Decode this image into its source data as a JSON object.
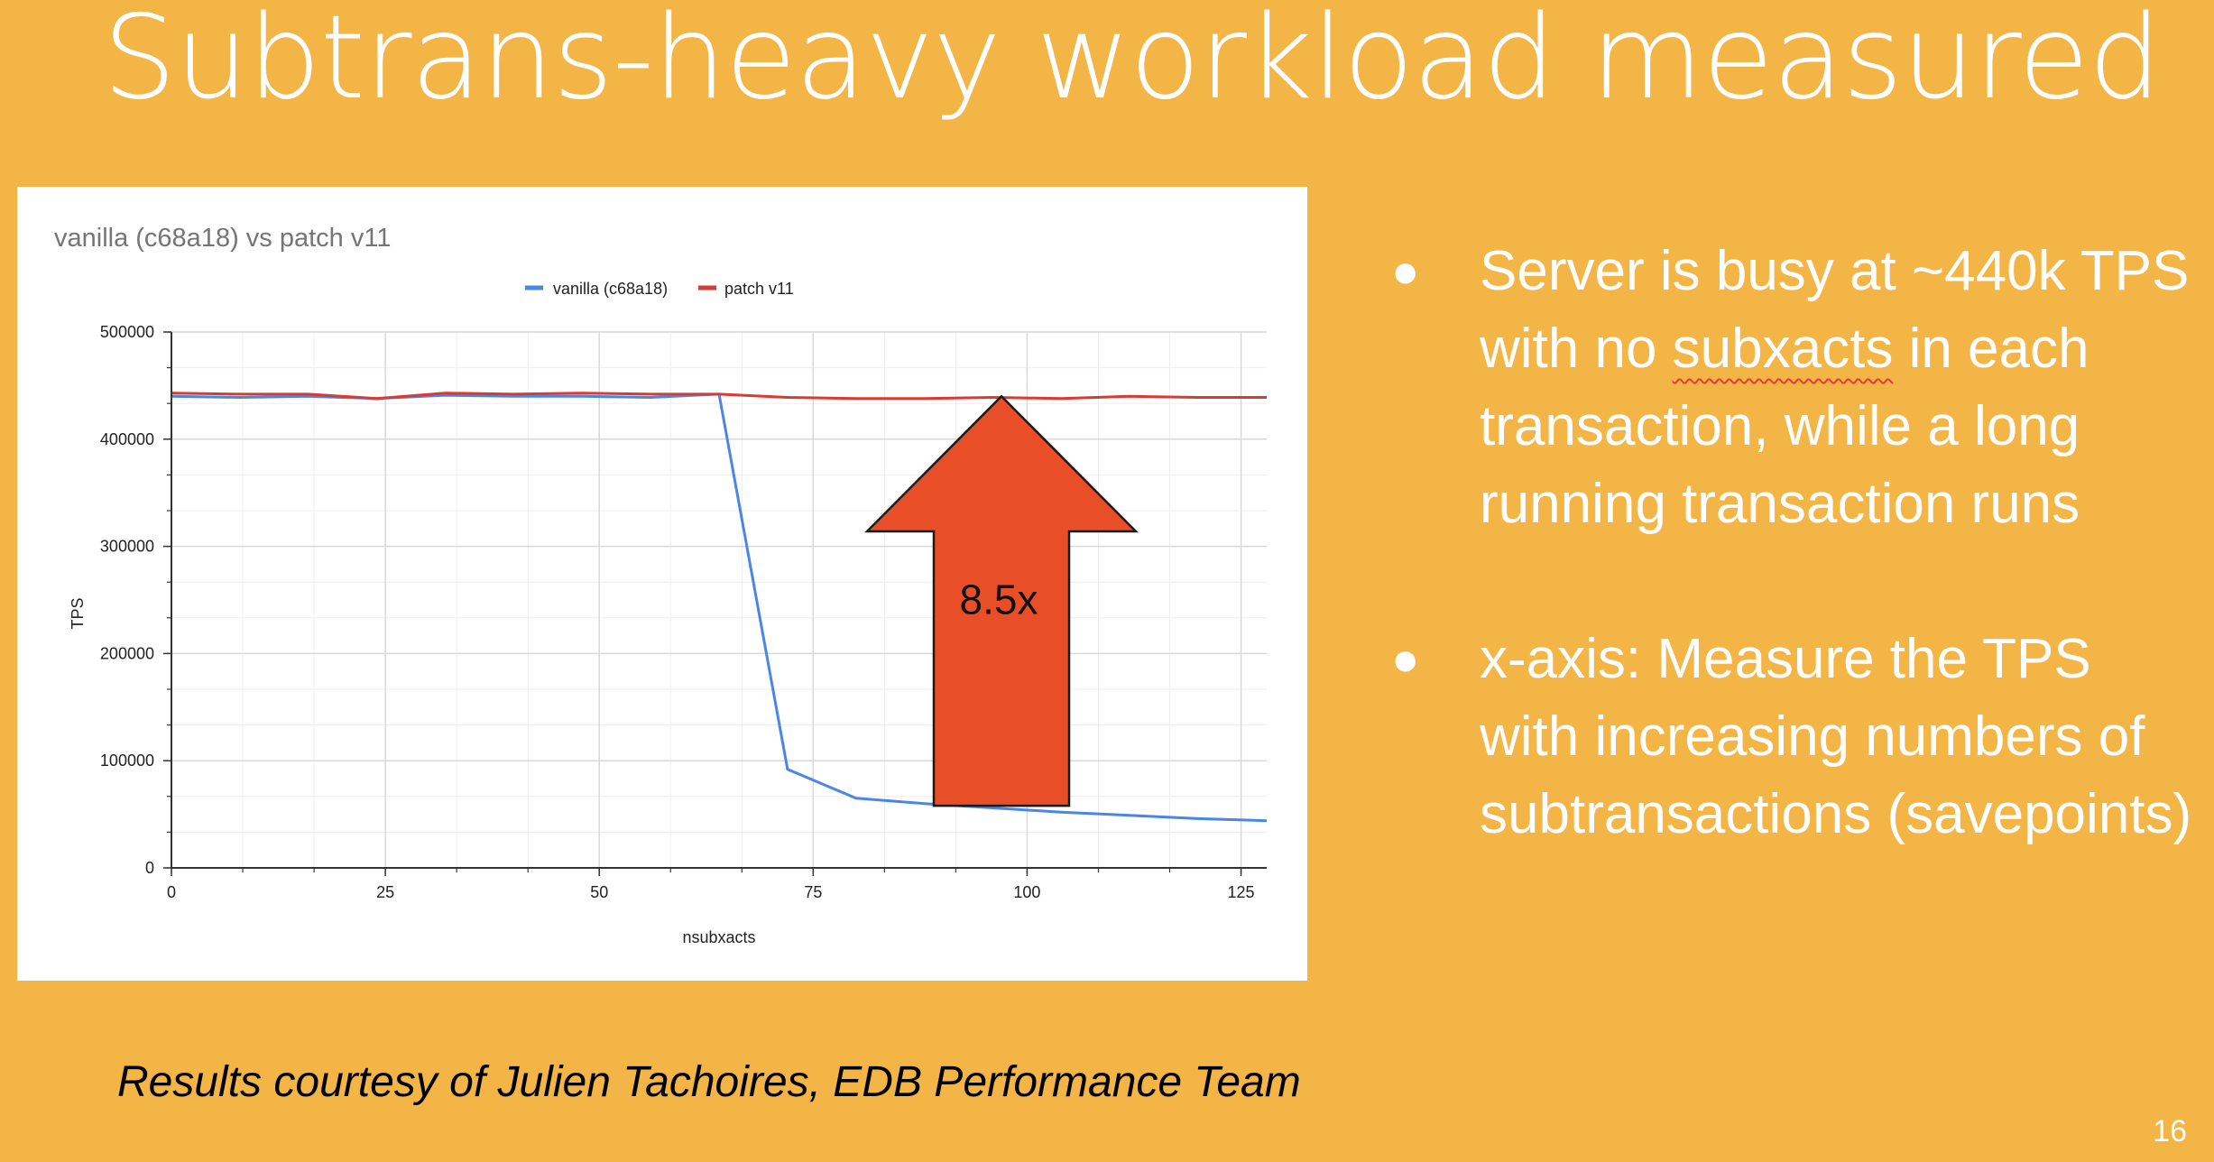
{
  "slide": {
    "title": "Subtrans-heavy workload measured",
    "bullets": [
      {
        "before": "Server is busy at ~440k TPS with no ",
        "flagged": "subxacts",
        "after": " in each transaction, while a long running transaction runs"
      },
      {
        "before": "x-axis: Measure the TPS with increasing numbers of subtransactions (savepoints)",
        "flagged": "",
        "after": ""
      }
    ],
    "credit": "Results courtesy of Julien Tachoires, EDB Performance Team",
    "page_number": "16"
  },
  "chart_data": {
    "type": "line",
    "title": "vanilla (c68a18) vs patch v11",
    "xlabel": "nsubxacts",
    "ylabel": "TPS",
    "xlim": [
      0,
      128
    ],
    "ylim": [
      0,
      500000
    ],
    "x_ticks": [
      0,
      25,
      50,
      75,
      100,
      125
    ],
    "y_ticks": [
      0,
      100000,
      200000,
      300000,
      400000,
      500000
    ],
    "grid": true,
    "legend_position": "top-center",
    "series": [
      {
        "name": "vanilla (c68a18)",
        "color": "#4A86E8",
        "points": [
          [
            0,
            440000
          ],
          [
            8,
            439000
          ],
          [
            16,
            440000
          ],
          [
            24,
            438000
          ],
          [
            32,
            441000
          ],
          [
            40,
            440000
          ],
          [
            48,
            440000
          ],
          [
            56,
            439000
          ],
          [
            64,
            442000
          ],
          [
            72,
            92000
          ],
          [
            80,
            65000
          ],
          [
            88,
            60000
          ],
          [
            96,
            56000
          ],
          [
            104,
            52000
          ],
          [
            112,
            49000
          ],
          [
            120,
            46000
          ],
          [
            128,
            44000
          ]
        ]
      },
      {
        "name": "patch v11",
        "color": "#D93A32",
        "points": [
          [
            0,
            443000
          ],
          [
            8,
            442000
          ],
          [
            16,
            442000
          ],
          [
            24,
            438000
          ],
          [
            32,
            443000
          ],
          [
            40,
            442000
          ],
          [
            48,
            443000
          ],
          [
            56,
            442000
          ],
          [
            64,
            442000
          ],
          [
            72,
            439000
          ],
          [
            80,
            438000
          ],
          [
            88,
            438000
          ],
          [
            96,
            439000
          ],
          [
            104,
            438000
          ],
          [
            112,
            440000
          ],
          [
            120,
            439000
          ],
          [
            128,
            439000
          ]
        ]
      }
    ],
    "annotation": {
      "label": "8.5x",
      "color": "#E84E28",
      "base_y": 58000,
      "tip_y": 440000,
      "x": 97
    }
  }
}
